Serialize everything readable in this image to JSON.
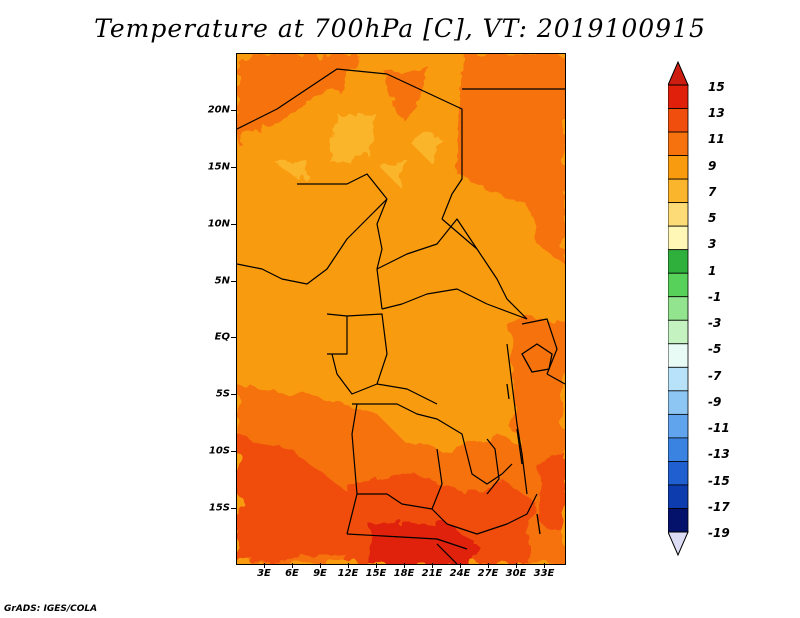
{
  "title": "Temperature at 700hPa [C], VT: 2019100915",
  "credit": "GrADS: IGES/COLA",
  "y_axis_labels": [
    "20N",
    "15N",
    "10N",
    "5N",
    "EQ",
    "5S",
    "10S",
    "15S"
  ],
  "x_axis_labels": [
    "3E",
    "6E",
    "9E",
    "12E",
    "15E",
    "18E",
    "21E",
    "24E",
    "27E",
    "30E",
    "33E"
  ],
  "colorbar": {
    "labels": [
      "15",
      "13",
      "11",
      "9",
      "7",
      "5",
      "3",
      "1",
      "-1",
      "-3",
      "-5",
      "-7",
      "-9",
      "-11",
      "-13",
      "-15",
      "-17",
      "-19"
    ],
    "colors": [
      "#e0200a",
      "#f04e0c",
      "#f6720e",
      "#f99b0f",
      "#fbb52c",
      "#fddc77",
      "#fff7b5",
      "#2fb03c",
      "#58d15a",
      "#92e48e",
      "#c4f2c0",
      "#e9fbf5",
      "#b8e2fa",
      "#8ec6f3",
      "#5fa4ec",
      "#3a83e1",
      "#1f5fcf",
      "#0c3cae",
      "#05126b"
    ],
    "over_color": "#cc1d10",
    "under_color": "#dcdcf4"
  }
}
